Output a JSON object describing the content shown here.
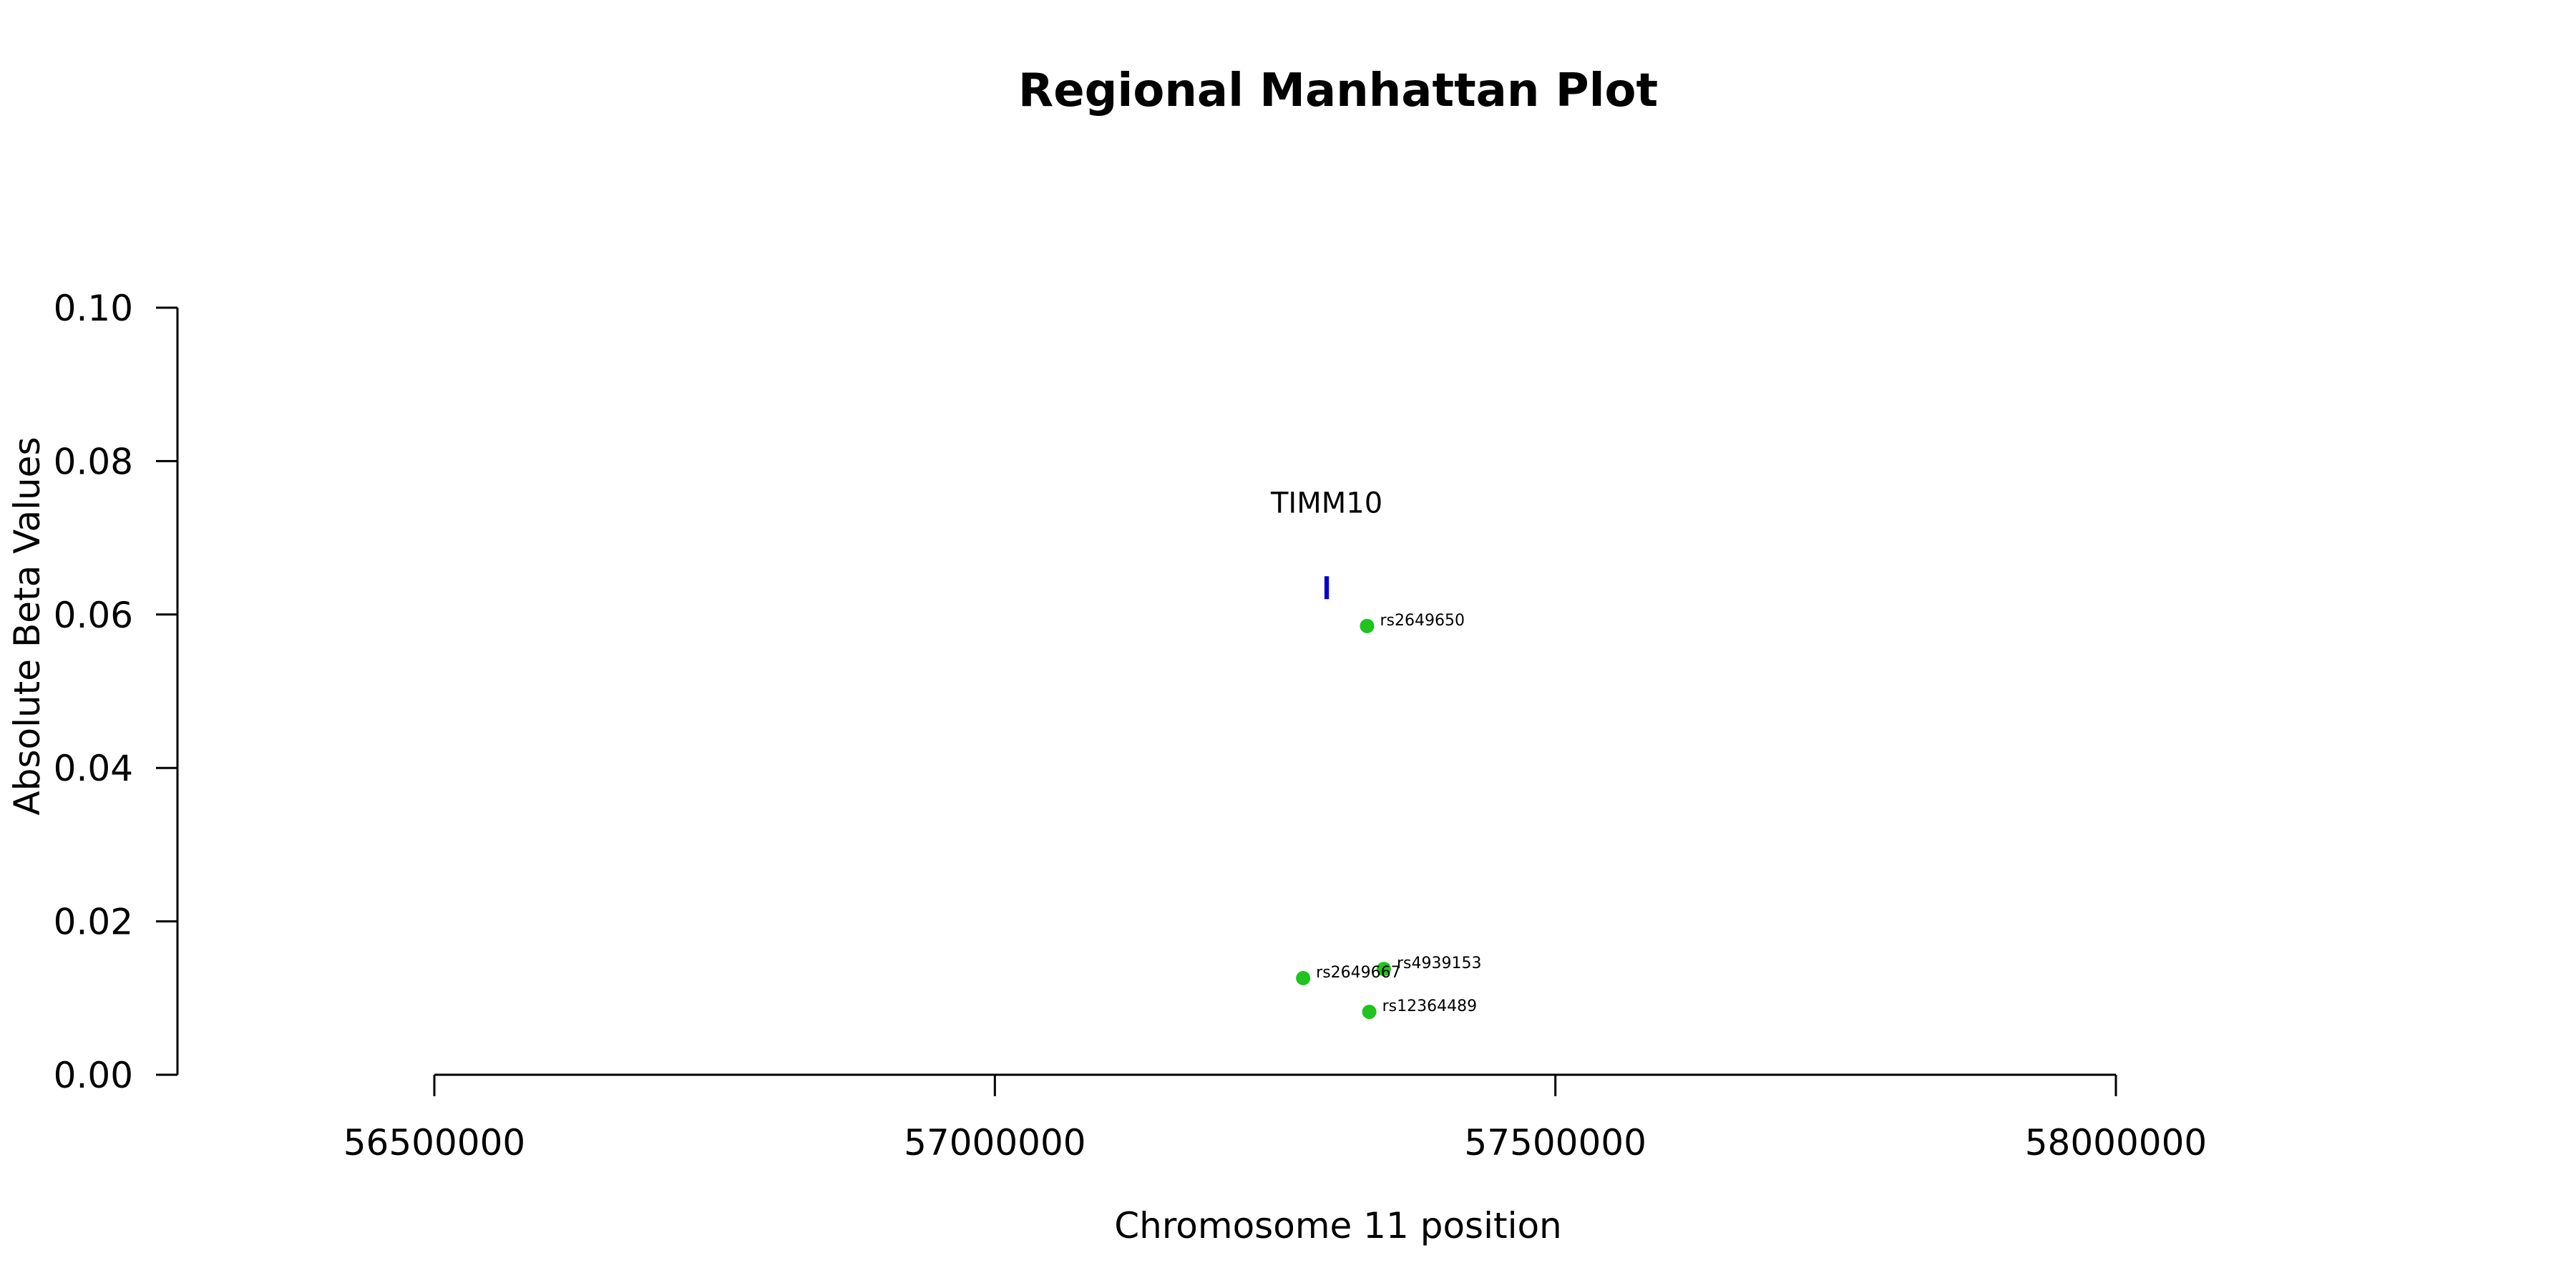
{
  "chart_data": {
    "type": "scatter",
    "title": "Regional Manhattan Plot",
    "xlabel": "Chromosome 11 position",
    "ylabel": "Absolute Beta Values",
    "xlim": [
      56500000,
      58000000
    ],
    "ylim": [
      0,
      0.1
    ],
    "x_ticks": [
      56500000,
      57000000,
      57500000,
      58000000
    ],
    "x_tick_labels": [
      "56500000",
      "57000000",
      "57500000",
      "58000000"
    ],
    "y_ticks": [
      0,
      0.02,
      0.04,
      0.06,
      0.08,
      0.1
    ],
    "y_tick_labels": [
      "0.00",
      "0.02",
      "0.04",
      "0.06",
      "0.08",
      "0.10"
    ],
    "grid": false,
    "point_color": "#1fc41f",
    "gene_color": "#0000cc",
    "points": [
      {
        "label": "rs2649650",
        "x": 57332000,
        "y": 0.0585
      },
      {
        "label": "rs4939153",
        "x": 57347000,
        "y": 0.0138
      },
      {
        "label": "rs2649667",
        "x": 57275000,
        "y": 0.0126
      },
      {
        "label": "rs12364489",
        "x": 57334000,
        "y": 0.0082
      }
    ],
    "genes": [
      {
        "name": "TIMM10",
        "start": 57294000,
        "end": 57298000,
        "y": 0.0635
      }
    ]
  }
}
